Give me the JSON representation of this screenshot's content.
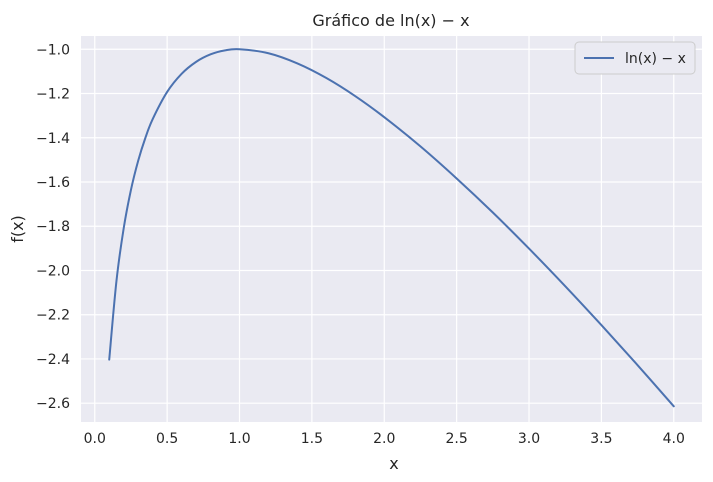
{
  "chart_data": {
    "type": "line",
    "title": "Gráfico de ln(x) − x",
    "xlabel": "x",
    "ylabel": "f(x)",
    "xlim": [
      -0.095,
      4.195
    ],
    "ylim": [
      -2.685,
      -0.94
    ],
    "x_ticks": [
      0.0,
      0.5,
      1.0,
      1.5,
      2.0,
      2.5,
      3.0,
      3.5,
      4.0
    ],
    "x_tick_labels": [
      "0.0",
      "0.5",
      "1.0",
      "1.5",
      "2.0",
      "2.5",
      "3.0",
      "3.5",
      "4.0"
    ],
    "y_ticks": [
      -1.0,
      -1.2,
      -1.4,
      -1.6,
      -1.8,
      -2.0,
      -2.2,
      -2.4,
      -2.6
    ],
    "y_tick_labels": [
      "−1.0",
      "−1.2",
      "−1.4",
      "−1.6",
      "−1.8",
      "−2.0",
      "−2.2",
      "−2.4",
      "−2.6"
    ],
    "grid": true,
    "legend_position": "top-right",
    "series": [
      {
        "name": "ln(x) − x",
        "color": "#4c72b0",
        "x": [
          0.1,
          0.15,
          0.2,
          0.25,
          0.3,
          0.35,
          0.4,
          0.5,
          0.6,
          0.7,
          0.8,
          0.9,
          1.0,
          1.2,
          1.4,
          1.6,
          1.8,
          2.0,
          2.25,
          2.5,
          2.75,
          3.0,
          3.25,
          3.5,
          3.75,
          4.0
        ],
        "y": [
          -2.403,
          -2.047,
          -1.809,
          -1.636,
          -1.504,
          -1.4,
          -1.316,
          -1.193,
          -1.111,
          -1.057,
          -1.023,
          -1.005,
          -1.0,
          -1.018,
          -1.064,
          -1.13,
          -1.212,
          -1.307,
          -1.439,
          -1.584,
          -1.738,
          -1.901,
          -2.071,
          -2.247,
          -2.428,
          -2.614
        ]
      }
    ]
  },
  "colors": {
    "plot_background": "#eaeaf2",
    "grid": "#ffffff",
    "text": "#262626"
  }
}
